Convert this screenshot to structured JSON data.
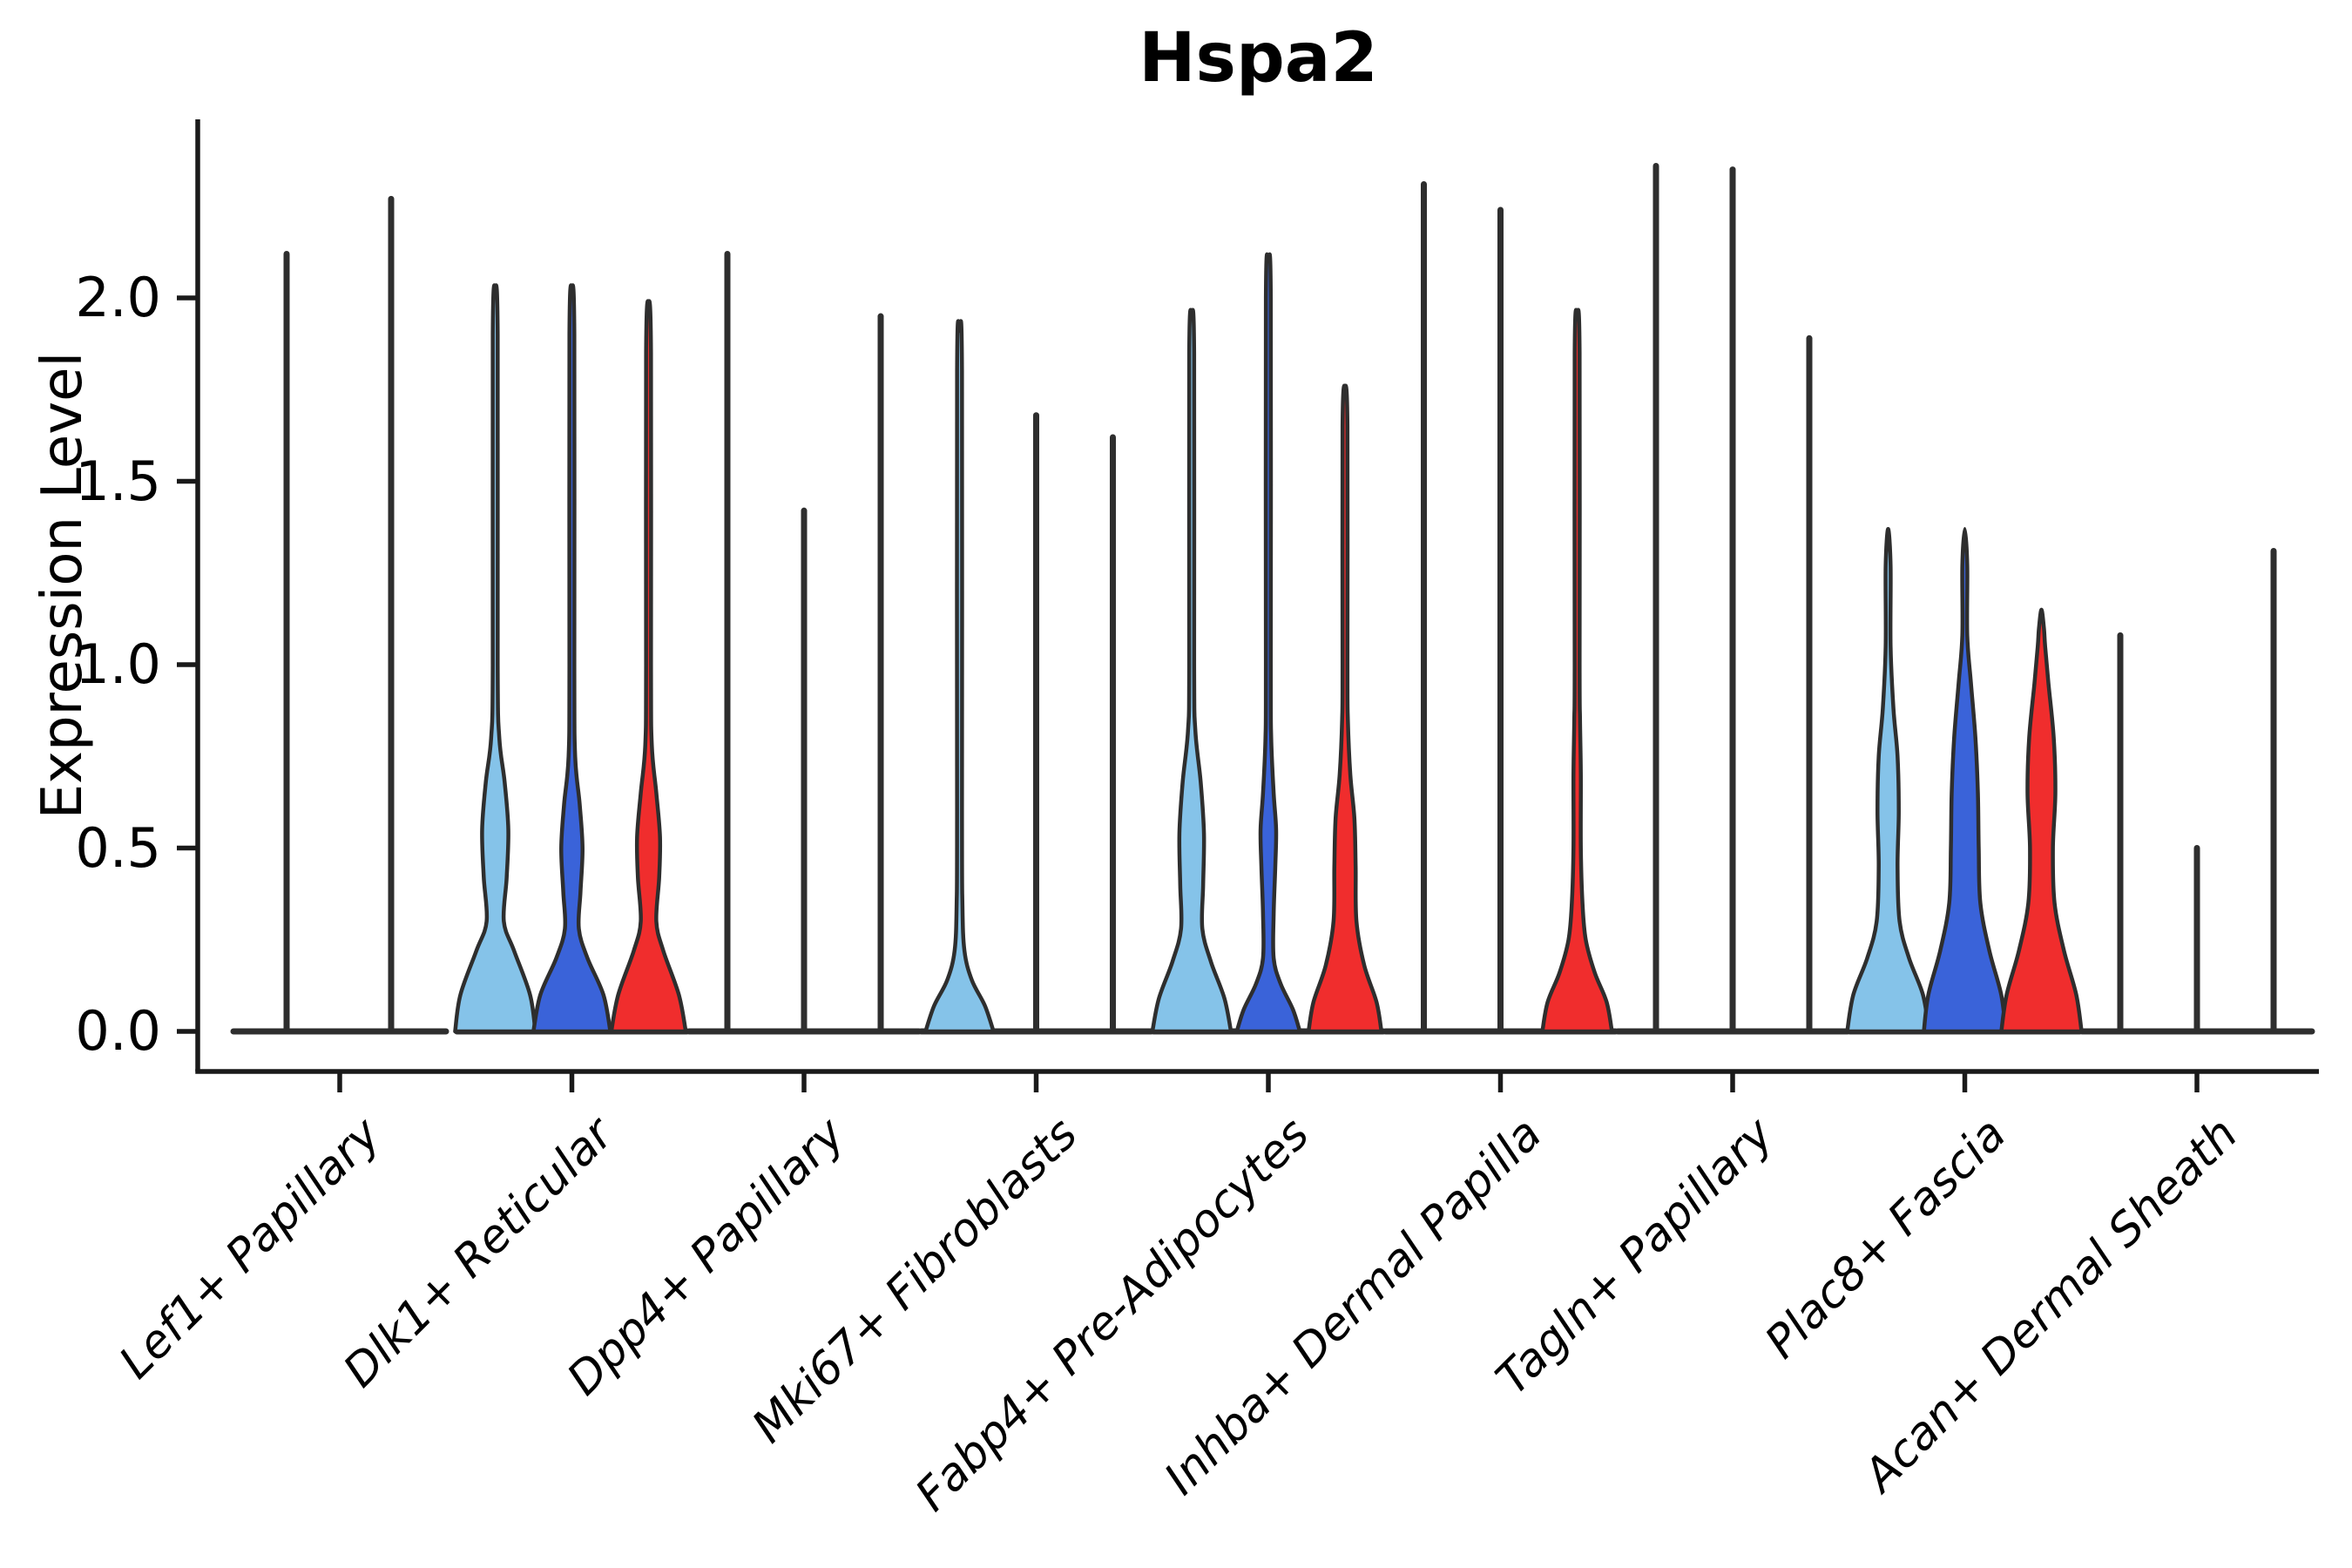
{
  "chart_data": {
    "type": "violin",
    "title": "Hspa2",
    "ylabel": "Expression Level",
    "ytick_labels": [
      "0.0",
      "0.5",
      "1.0",
      "1.5",
      "2.0"
    ],
    "yticks": [
      0.0,
      0.5,
      1.0,
      1.5,
      2.0
    ],
    "ylim": [
      -0.11,
      2.49
    ],
    "grid": false,
    "legend": "none",
    "categories": [
      "Lef1+ Papillary",
      "Dlk1+ Reticular",
      "Dpp4+ Papillary",
      "Mki67+ Fibroblasts",
      "Fabp4+ Pre-Adipocytes",
      "Inhba+ Dermal Papilla",
      "Tagln+ Papillary",
      "Plac8+ Fascia",
      "Acan+ Dermal Sheath"
    ],
    "series_colors": [
      "#85C3E9",
      "#3A63D9",
      "#F02D2D"
    ],
    "edge_color": "#2E2E2E",
    "axis_color": "#1A1A1A",
    "groups": [
      {
        "category": "Lef1+ Papillary",
        "violins": [
          {
            "color_index": 0,
            "shape": "line",
            "max": 2.12
          },
          {
            "color_index": 1,
            "shape": "line",
            "max": 2.27
          }
        ]
      },
      {
        "category": "Dlk1+ Reticular",
        "violins": [
          {
            "color_index": 0,
            "shape": "violin",
            "max": 2.03,
            "profile": [
              [
                0,
                0.98
              ],
              [
                0.1,
                0.85
              ],
              [
                0.22,
                0.46
              ],
              [
                0.3,
                0.21
              ],
              [
                0.42,
                0.28
              ],
              [
                0.55,
                0.32
              ],
              [
                0.68,
                0.23
              ],
              [
                0.8,
                0.1
              ],
              [
                1.0,
                0.06
              ],
              [
                1.9,
                0.06
              ]
            ]
          },
          {
            "color_index": 1,
            "shape": "violin",
            "max": 2.03,
            "profile": [
              [
                0,
                0.94
              ],
              [
                0.1,
                0.77
              ],
              [
                0.2,
                0.38
              ],
              [
                0.28,
                0.17
              ],
              [
                0.38,
                0.21
              ],
              [
                0.5,
                0.26
              ],
              [
                0.62,
                0.19
              ],
              [
                0.75,
                0.08
              ],
              [
                1.0,
                0.06
              ],
              [
                1.9,
                0.06
              ]
            ]
          },
          {
            "color_index": 2,
            "shape": "violin",
            "max": 1.99,
            "profile": [
              [
                0,
                0.91
              ],
              [
                0.1,
                0.74
              ],
              [
                0.22,
                0.36
              ],
              [
                0.3,
                0.19
              ],
              [
                0.42,
                0.26
              ],
              [
                0.53,
                0.28
              ],
              [
                0.65,
                0.19
              ],
              [
                0.78,
                0.08
              ],
              [
                1.0,
                0.06
              ],
              [
                1.85,
                0.06
              ]
            ]
          }
        ]
      },
      {
        "category": "Dpp4+ Papillary",
        "violins": [
          {
            "color_index": 0,
            "shape": "line",
            "max": 2.12
          },
          {
            "color_index": 1,
            "shape": "line",
            "max": 1.42
          },
          {
            "color_index": 2,
            "shape": "line",
            "max": 1.95
          }
        ]
      },
      {
        "category": "Mki67+ Fibroblasts",
        "violins": [
          {
            "color_index": 0,
            "shape": "violin",
            "max": 1.91,
            "profile": [
              [
                0,
                0.83
              ],
              [
                0.07,
                0.62
              ],
              [
                0.14,
                0.3
              ],
              [
                0.22,
                0.12
              ],
              [
                0.35,
                0.07
              ],
              [
                0.6,
                0.06
              ],
              [
                1.8,
                0.06
              ]
            ]
          },
          {
            "color_index": 1,
            "shape": "line",
            "max": 1.68
          },
          {
            "color_index": 2,
            "shape": "line",
            "max": 1.62
          }
        ]
      },
      {
        "category": "Fabp4+ Pre-Adipocytes",
        "violins": [
          {
            "color_index": 0,
            "shape": "violin",
            "max": 1.96,
            "profile": [
              [
                0,
                0.96
              ],
              [
                0.09,
                0.8
              ],
              [
                0.19,
                0.47
              ],
              [
                0.28,
                0.26
              ],
              [
                0.4,
                0.28
              ],
              [
                0.54,
                0.3
              ],
              [
                0.68,
                0.22
              ],
              [
                0.82,
                0.09
              ],
              [
                1.0,
                0.06
              ],
              [
                1.85,
                0.06
              ]
            ]
          },
          {
            "color_index": 1,
            "shape": "violin",
            "max": 2.1,
            "profile": [
              [
                0,
                0.77
              ],
              [
                0.06,
                0.6
              ],
              [
                0.13,
                0.3
              ],
              [
                0.2,
                0.13
              ],
              [
                0.32,
                0.13
              ],
              [
                0.45,
                0.17
              ],
              [
                0.55,
                0.19
              ],
              [
                0.65,
                0.13
              ],
              [
                0.8,
                0.07
              ],
              [
                1.0,
                0.06
              ],
              [
                2.0,
                0.06
              ]
            ]
          },
          {
            "color_index": 2,
            "shape": "violin",
            "max": 1.76,
            "profile": [
              [
                0,
                0.89
              ],
              [
                0.08,
                0.77
              ],
              [
                0.18,
                0.47
              ],
              [
                0.3,
                0.28
              ],
              [
                0.45,
                0.26
              ],
              [
                0.58,
                0.23
              ],
              [
                0.7,
                0.13
              ],
              [
                0.85,
                0.07
              ],
              [
                1.0,
                0.06
              ],
              [
                1.65,
                0.06
              ]
            ]
          }
        ]
      },
      {
        "category": "Inhba+ Dermal Papilla",
        "violins": [
          {
            "color_index": 0,
            "shape": "line",
            "max": 2.31
          },
          {
            "color_index": 1,
            "shape": "line",
            "max": 2.24
          },
          {
            "color_index": 2,
            "shape": "violin",
            "max": 1.96,
            "profile": [
              [
                0,
                0.85
              ],
              [
                0.08,
                0.72
              ],
              [
                0.16,
                0.43
              ],
              [
                0.25,
                0.21
              ],
              [
                0.35,
                0.13
              ],
              [
                0.5,
                0.09
              ],
              [
                0.7,
                0.09
              ],
              [
                0.85,
                0.07
              ],
              [
                1.0,
                0.06
              ],
              [
                1.85,
                0.06
              ]
            ]
          }
        ]
      },
      {
        "category": "Tagln+ Papillary",
        "violins": [
          {
            "color_index": 0,
            "shape": "line",
            "max": 2.36
          },
          {
            "color_index": 1,
            "shape": "line",
            "max": 2.35
          },
          {
            "color_index": 2,
            "shape": "line",
            "max": 1.89
          }
        ]
      },
      {
        "category": "Plac8+ Fascia",
        "violins": [
          {
            "color_index": 0,
            "shape": "violin",
            "max": 1.37,
            "profile": [
              [
                0,
                1.0
              ],
              [
                0.1,
                0.85
              ],
              [
                0.2,
                0.51
              ],
              [
                0.3,
                0.28
              ],
              [
                0.45,
                0.23
              ],
              [
                0.6,
                0.26
              ],
              [
                0.75,
                0.23
              ],
              [
                0.88,
                0.13
              ],
              [
                1.05,
                0.06
              ],
              [
                1.27,
                0.06
              ]
            ]
          },
          {
            "color_index": 1,
            "shape": "violin",
            "max": 1.37,
            "profile": [
              [
                0,
                1.0
              ],
              [
                0.1,
                0.89
              ],
              [
                0.22,
                0.6
              ],
              [
                0.35,
                0.38
              ],
              [
                0.5,
                0.34
              ],
              [
                0.65,
                0.32
              ],
              [
                0.8,
                0.26
              ],
              [
                0.95,
                0.15
              ],
              [
                1.08,
                0.06
              ],
              [
                1.27,
                0.06
              ]
            ]
          },
          {
            "color_index": 2,
            "shape": "violin",
            "max": 1.15,
            "profile": [
              [
                0,
                0.98
              ],
              [
                0.1,
                0.85
              ],
              [
                0.22,
                0.55
              ],
              [
                0.35,
                0.32
              ],
              [
                0.5,
                0.28
              ],
              [
                0.65,
                0.34
              ],
              [
                0.8,
                0.3
              ],
              [
                0.95,
                0.17
              ],
              [
                1.05,
                0.09
              ],
              [
                1.1,
                0.06
              ]
            ]
          }
        ]
      },
      {
        "category": "Acan+ Dermal Sheath",
        "violins": [
          {
            "color_index": 0,
            "shape": "line",
            "max": 1.08
          },
          {
            "color_index": 1,
            "shape": "line",
            "max": 0.5
          },
          {
            "color_index": 2,
            "shape": "line",
            "max": 1.31
          }
        ]
      }
    ]
  }
}
